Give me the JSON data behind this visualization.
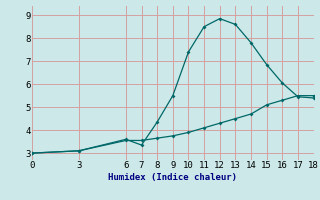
{
  "xlabel": "Humidex (Indice chaleur)",
  "bg_color": "#cce8e8",
  "grid_color": "#d4a0a0",
  "line_color": "#006868",
  "line1_x": [
    0,
    3,
    6,
    7,
    8,
    9,
    10,
    11,
    12,
    13,
    14,
    15,
    16,
    17,
    18
  ],
  "line1_y": [
    3.0,
    3.1,
    3.6,
    3.35,
    4.35,
    5.5,
    7.4,
    8.5,
    8.85,
    8.6,
    7.8,
    6.85,
    6.05,
    5.45,
    5.4
  ],
  "line2_x": [
    0,
    3,
    6,
    7,
    8,
    9,
    10,
    11,
    12,
    13,
    14,
    15,
    16,
    17,
    18
  ],
  "line2_y": [
    3.0,
    3.1,
    3.55,
    3.55,
    3.65,
    3.75,
    3.9,
    4.1,
    4.3,
    4.5,
    4.7,
    5.1,
    5.3,
    5.5,
    5.5
  ],
  "xlim": [
    0,
    18
  ],
  "ylim": [
    2.7,
    9.4
  ],
  "xticks": [
    0,
    3,
    6,
    7,
    8,
    9,
    10,
    11,
    12,
    13,
    14,
    15,
    16,
    17,
    18
  ],
  "yticks": [
    3,
    4,
    5,
    6,
    7,
    8,
    9
  ]
}
